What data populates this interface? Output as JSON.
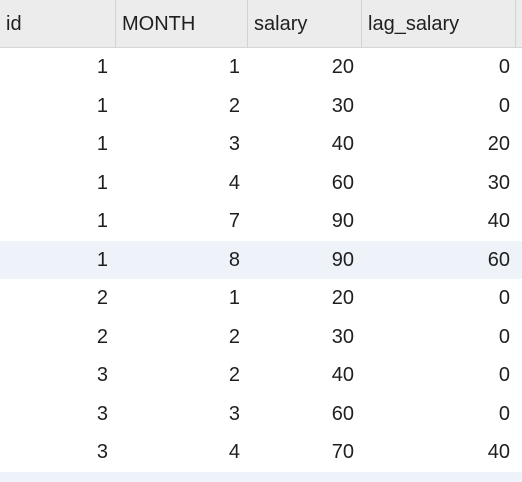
{
  "columns": [
    "id",
    "MONTH",
    "salary",
    "lag_salary"
  ],
  "rows": [
    [
      "1",
      "1",
      "20",
      "0"
    ],
    [
      "1",
      "2",
      "30",
      "0"
    ],
    [
      "1",
      "3",
      "40",
      "20"
    ],
    [
      "1",
      "4",
      "60",
      "30"
    ],
    [
      "1",
      "7",
      "90",
      "40"
    ],
    [
      "1",
      "8",
      "90",
      "60"
    ],
    [
      "2",
      "1",
      "20",
      "0"
    ],
    [
      "2",
      "2",
      "30",
      "0"
    ],
    [
      "3",
      "2",
      "40",
      "0"
    ],
    [
      "3",
      "3",
      "60",
      "0"
    ],
    [
      "3",
      "4",
      "70",
      "40"
    ]
  ],
  "selected_row_index": 5,
  "colors": {
    "header_bg": "#ececec",
    "row_highlight": "#eef2f9",
    "text": "#1f1f1f",
    "grid_line": "#d3d3d3"
  }
}
